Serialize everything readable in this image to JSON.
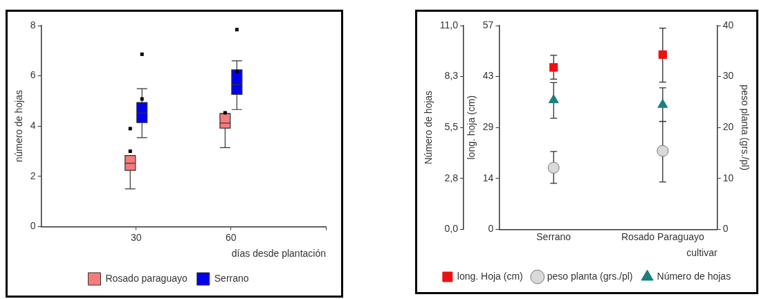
{
  "chart_data": [
    {
      "type": "box",
      "xlabel": "días desde plantación",
      "ylabel": "número de hojas",
      "x": [
        30,
        60
      ],
      "xlim": [
        0,
        90
      ],
      "xticks": [
        30,
        60,
        {
          "value": 90,
          "label": null
        }
      ],
      "ylim": [
        0,
        8
      ],
      "yticks": [
        0,
        2,
        4,
        6,
        8
      ],
      "grid": false,
      "legend": "bottom",
      "series": [
        {
          "name": "Rosado paraguayo",
          "color": "#f47c7c",
          "boxes": [
            {
              "low": 1.5,
              "q1": 2.24,
              "median": 2.52,
              "q3": 2.83,
              "high": 2.83,
              "outliers": [
                3.0,
                3.9
              ]
            },
            {
              "low": 3.14,
              "q1": 3.92,
              "median": 4.12,
              "q3": 4.5,
              "high": 4.5,
              "outliers": [
                4.53
              ]
            }
          ]
        },
        {
          "name": "Serrano",
          "color": "#0000ee",
          "boxes": [
            {
              "low": 3.54,
              "q1": 4.14,
              "median": 4.52,
              "q3": 4.94,
              "high": 5.49,
              "outliers": [
                5.08,
                6.86
              ]
            },
            {
              "low": 4.66,
              "q1": 5.26,
              "median": 5.65,
              "q3": 6.24,
              "high": 6.6,
              "outliers": [
                6.17,
                7.84
              ]
            }
          ]
        }
      ]
    },
    {
      "type": "scatter",
      "categories": [
        "Serrano",
        "Rosado Paraguayo"
      ],
      "xlabel": "cultivar",
      "ylabel": "Número de hojas",
      "y2label": "long. hoja (cm)",
      "y3label": "peso planta (grs./pl)",
      "ylim": [
        0,
        11
      ],
      "yticks": [
        {
          "value": 0,
          "label": "0,0"
        },
        {
          "value": 2.75,
          "label": "2,8"
        },
        {
          "value": 5.5,
          "label": "5,5"
        },
        {
          "value": 8.25,
          "label": "8,3"
        },
        {
          "value": 11,
          "label": "11,0"
        }
      ],
      "y2lim": [
        0,
        57
      ],
      "y2ticks": [
        0,
        {
          "value": 14.25,
          "label": "14"
        },
        {
          "value": 28.5,
          "label": "29"
        },
        {
          "value": 42.75,
          "label": "43"
        },
        57
      ],
      "y3lim": [
        0,
        40
      ],
      "y3ticks": [
        0,
        10,
        20,
        30,
        40
      ],
      "grid": false,
      "legend": "bottom",
      "series": [
        {
          "name": "long. Hoja (cm)",
          "color": "#ee1111",
          "marker": "square",
          "axis": "y2",
          "values": [
            45.3,
            48.9
          ],
          "errors": [
            [
              42.0,
              48.7
            ],
            [
              41.2,
              56.3
            ]
          ]
        },
        {
          "name": "peso planta (grs./pl)",
          "color": "#d9d9d9",
          "marker": "circle",
          "axis": "y3",
          "values": [
            12.1,
            15.4
          ],
          "errors": [
            [
              9.05,
              15.3
            ],
            [
              9.3,
              21.2
            ]
          ]
        },
        {
          "name": "Número de hojas",
          "color": "#1a7f7f",
          "marker": "triangle",
          "axis": "y",
          "values": [
            6.98,
            6.73
          ],
          "errors": [
            [
              6.0,
              7.92
            ],
            [
              5.82,
              7.64
            ]
          ]
        }
      ]
    }
  ]
}
